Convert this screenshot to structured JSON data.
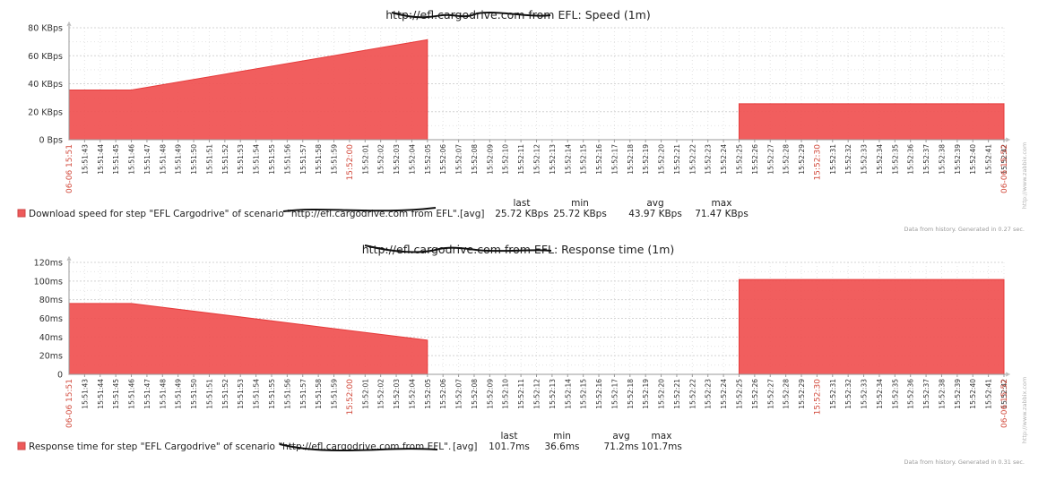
{
  "chart_data": [
    {
      "type": "area",
      "title": "http://efl.cargodrive.com from EFL: Speed (1m)",
      "y_unit": "Bps",
      "ylim": [
        0,
        80000
      ],
      "y_ticks": [
        {
          "value": 0,
          "label": "0 Bps"
        },
        {
          "value": 20000,
          "label": "20 KBps"
        },
        {
          "value": 40000,
          "label": "40 KBps"
        },
        {
          "value": 60000,
          "label": "60 KBps"
        },
        {
          "value": 80000,
          "label": "80 KBps"
        }
      ],
      "x_start_label": "06-06 15:51",
      "x_end_label": "06-06 15:52",
      "x_mid_label": "15:52:30",
      "x_ticks": [
        "15:51:43",
        "15:51:44",
        "15:51:45",
        "15:51:46",
        "15:51:47",
        "15:51:48",
        "15:51:49",
        "15:51:50",
        "15:51:51",
        "15:51:52",
        "15:51:53",
        "15:51:54",
        "15:51:55",
        "15:51:56",
        "15:51:57",
        "15:51:58",
        "15:51:59",
        "15:52:00",
        "15:52:01",
        "15:52:02",
        "15:52:03",
        "15:52:04",
        "15:52:05",
        "15:52:06",
        "15:52:07",
        "15:52:08",
        "15:52:09",
        "15:52:10",
        "15:52:11",
        "15:52:12",
        "15:52:13",
        "15:52:14",
        "15:52:15",
        "15:52:16",
        "15:52:17",
        "15:52:18",
        "15:52:19",
        "15:52:20",
        "15:52:21",
        "15:52:22",
        "15:52:23",
        "15:52:24",
        "15:52:25",
        "15:52:26",
        "15:52:27",
        "15:52:28",
        "15:52:29",
        "15:52:30",
        "15:52:31",
        "15:52:32",
        "15:52:33",
        "15:52:34",
        "15:52:35",
        "15:52:36",
        "15:52:37",
        "15:52:38",
        "15:52:39",
        "15:52:40",
        "15:52:41",
        "15:52:42"
      ],
      "red_ticks": [
        "15:52:00",
        "15:52:30"
      ],
      "series": [
        {
          "name": "Download speed for step \"EFL Cargodrive\" of scenario \"http://efl.cargodrive.com from EFL\".",
          "color": "#f05050",
          "segments": [
            [
              [
                "15:51:42",
                35500
              ],
              [
                "15:51:46",
                35500
              ],
              [
                "15:52:05",
                71470
              ]
            ],
            [
              [
                "15:52:25",
                25720
              ],
              [
                "15:52:42",
                25720
              ]
            ]
          ]
        }
      ],
      "legend": {
        "headers": [
          "last",
          "min",
          "avg",
          "max"
        ],
        "func": "[avg]",
        "values": [
          "25.72 KBps",
          "25.72 KBps",
          "43.97 KBps",
          "71.47 KBps"
        ]
      },
      "footer": "Data from history. Generated in 0.27 sec.",
      "side": "http://www.zabbix.com"
    },
    {
      "type": "area",
      "title": "http://efl.cargodrive.com from EFL: Response time (1m)",
      "y_unit": "ms",
      "ylim": [
        0,
        120
      ],
      "y_ticks": [
        {
          "value": 0,
          "label": "0"
        },
        {
          "value": 20,
          "label": "20ms"
        },
        {
          "value": 40,
          "label": "40ms"
        },
        {
          "value": 60,
          "label": "60ms"
        },
        {
          "value": 80,
          "label": "80ms"
        },
        {
          "value": 100,
          "label": "100ms"
        },
        {
          "value": 120,
          "label": "120ms"
        }
      ],
      "x_start_label": "06-06 15:51",
      "x_end_label": "06-06 15:52",
      "x_mid_label": "15:52:30",
      "x_ticks": [
        "15:51:43",
        "15:51:44",
        "15:51:45",
        "15:51:46",
        "15:51:47",
        "15:51:48",
        "15:51:49",
        "15:51:50",
        "15:51:51",
        "15:51:52",
        "15:51:53",
        "15:51:54",
        "15:51:55",
        "15:51:56",
        "15:51:57",
        "15:51:58",
        "15:51:59",
        "15:52:00",
        "15:52:01",
        "15:52:02",
        "15:52:03",
        "15:52:04",
        "15:52:05",
        "15:52:06",
        "15:52:07",
        "15:52:08",
        "15:52:09",
        "15:52:10",
        "15:52:11",
        "15:52:12",
        "15:52:13",
        "15:52:14",
        "15:52:15",
        "15:52:16",
        "15:52:17",
        "15:52:18",
        "15:52:19",
        "15:52:20",
        "15:52:21",
        "15:52:22",
        "15:52:23",
        "15:52:24",
        "15:52:25",
        "15:52:26",
        "15:52:27",
        "15:52:28",
        "15:52:29",
        "15:52:30",
        "15:52:31",
        "15:52:32",
        "15:52:33",
        "15:52:34",
        "15:52:35",
        "15:52:36",
        "15:52:37",
        "15:52:38",
        "15:52:39",
        "15:52:40",
        "15:52:41",
        "15:52:42"
      ],
      "red_ticks": [
        "15:52:00",
        "15:52:30"
      ],
      "series": [
        {
          "name": "Response time for step \"EFL Cargodrive\" of scenario \"http://efl.cargodrive.com from EFL\".",
          "color": "#f05050",
          "segments": [
            [
              [
                "15:51:42",
                76
              ],
              [
                "15:51:46",
                76
              ],
              [
                "15:52:05",
                36.6
              ]
            ],
            [
              [
                "15:52:25",
                101.7
              ],
              [
                "15:52:42",
                101.7
              ]
            ]
          ]
        }
      ],
      "legend": {
        "headers": [
          "last",
          "min",
          "avg",
          "max"
        ],
        "func": "[avg]",
        "values": [
          "101.7ms",
          "36.6ms",
          "71.2ms",
          "101.7ms"
        ]
      },
      "footer": "Data from history. Generated in 0.31 sec.",
      "side": "http://www.zabbix.com"
    }
  ]
}
